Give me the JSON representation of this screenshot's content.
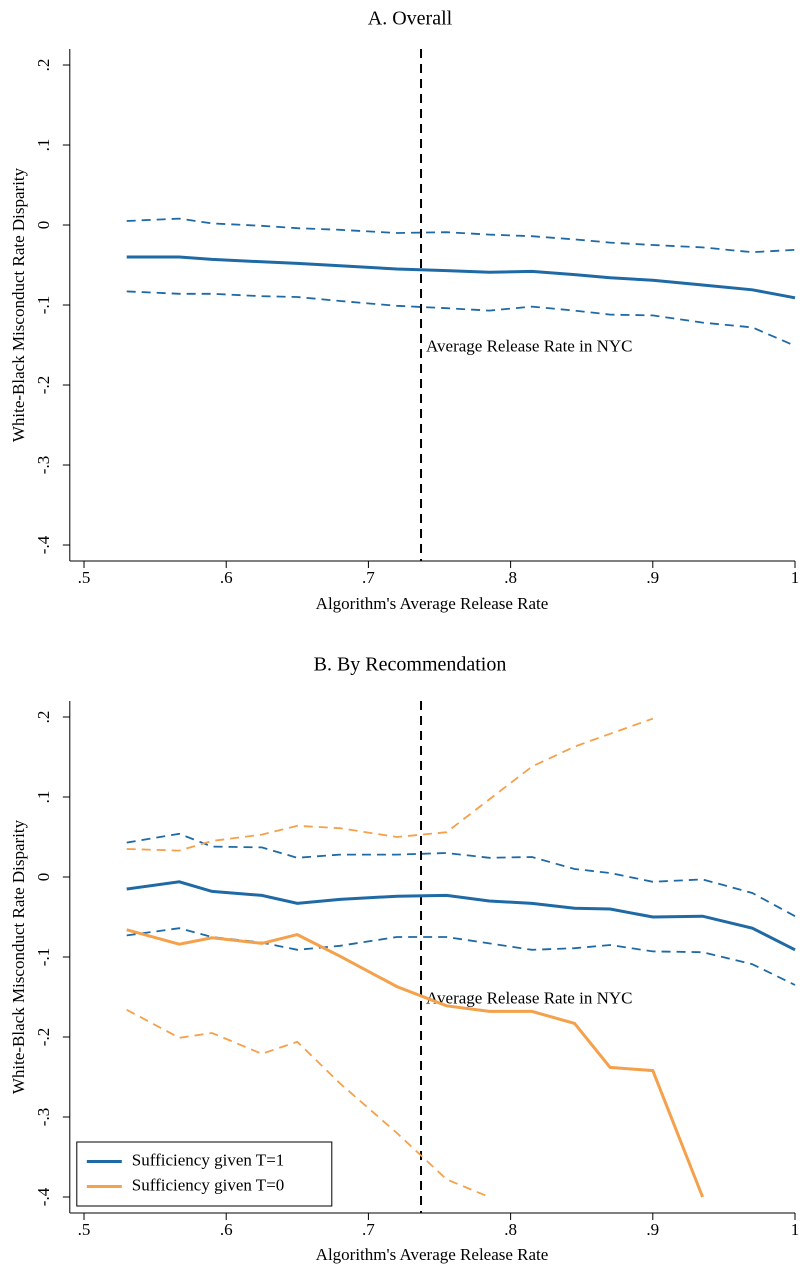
{
  "chart_data": [
    {
      "type": "line",
      "title": "A. Overall",
      "xlabel": "Algorithm's Average Release Rate",
      "ylabel": "White-Black Misconduct Rate Disparity",
      "x": [
        0.53,
        0.567,
        0.59,
        0.625,
        0.65,
        0.68,
        0.72,
        0.755,
        0.785,
        0.815,
        0.845,
        0.87,
        0.9,
        0.935,
        0.97,
        1.0
      ],
      "series": [
        {
          "color": "#1f6aa5",
          "values": [
            -0.04,
            -0.04,
            -0.043,
            -0.046,
            -0.048,
            -0.051,
            -0.055,
            -0.057,
            -0.059,
            -0.058,
            -0.062,
            -0.066,
            -0.069,
            -0.075,
            -0.081,
            -0.091
          ],
          "upper": [
            0.005,
            0.008,
            0.002,
            -0.001,
            -0.004,
            -0.006,
            -0.01,
            -0.009,
            -0.012,
            -0.014,
            -0.018,
            -0.022,
            -0.025,
            -0.028,
            -0.034,
            -0.031
          ],
          "lower": [
            -0.083,
            -0.086,
            -0.086,
            -0.089,
            -0.09,
            -0.095,
            -0.101,
            -0.104,
            -0.107,
            -0.102,
            -0.107,
            -0.112,
            -0.113,
            -0.122,
            -0.128,
            -0.151
          ]
        }
      ],
      "vline": {
        "value": 0.737,
        "label": "Average Release Rate in NYC"
      },
      "xlim": [
        0.49,
        1.0
      ],
      "ylim": [
        -0.42,
        0.22
      ],
      "xticks": [
        {
          "value": 0.5,
          "label": ".5"
        },
        {
          "value": 0.6,
          "label": ".6"
        },
        {
          "value": 0.7,
          "label": ".7"
        },
        {
          "value": 0.8,
          "label": ".8"
        },
        {
          "value": 0.9,
          "label": ".9"
        },
        1
      ],
      "yticks": [
        {
          "value": -0.4,
          "label": "-.4"
        },
        {
          "value": -0.3,
          "label": "-.3"
        },
        {
          "value": -0.2,
          "label": "-.2"
        },
        {
          "value": -0.1,
          "label": "-.1"
        },
        0,
        {
          "value": 0.1,
          "label": ".1"
        },
        {
          "value": 0.2,
          "label": ".2"
        }
      ]
    },
    {
      "type": "line",
      "title": "B. By Recommendation",
      "xlabel": "Algorithm's Average Release Rate",
      "ylabel": "White-Black Misconduct Rate Disparity",
      "x": [
        0.53,
        0.567,
        0.59,
        0.625,
        0.65,
        0.68,
        0.72,
        0.755,
        0.785,
        0.815,
        0.845,
        0.87,
        0.9,
        0.935,
        0.97,
        1.0
      ],
      "series": [
        {
          "name": "Sufficiency given T=1",
          "color": "#1f6aa5",
          "values": [
            -0.015,
            -0.006,
            -0.018,
            -0.023,
            -0.033,
            -0.028,
            -0.024,
            -0.023,
            -0.03,
            -0.033,
            -0.039,
            -0.04,
            -0.05,
            -0.049,
            -0.064,
            -0.091
          ],
          "upper": [
            0.043,
            0.054,
            0.038,
            0.037,
            0.024,
            0.028,
            0.028,
            0.03,
            0.024,
            0.025,
            0.01,
            0.005,
            -0.006,
            -0.003,
            -0.02,
            -0.049
          ],
          "lower": [
            -0.073,
            -0.064,
            -0.075,
            -0.082,
            -0.091,
            -0.086,
            -0.075,
            -0.075,
            -0.083,
            -0.091,
            -0.089,
            -0.085,
            -0.093,
            -0.094,
            -0.109,
            -0.135
          ]
        },
        {
          "name": "Sufficiency given T=0",
          "color": "#f5a04a",
          "values": [
            -0.066,
            -0.084,
            -0.076,
            -0.083,
            -0.072,
            -0.099,
            -0.137,
            -0.161,
            -0.168,
            -0.168,
            -0.183,
            -0.238,
            -0.242,
            -0.4,
            null,
            null
          ],
          "upper": [
            0.035,
            0.033,
            0.045,
            0.053,
            0.064,
            0.061,
            0.05,
            0.056,
            0.097,
            0.138,
            0.163,
            0.179,
            0.198,
            null,
            null,
            null
          ],
          "lower": [
            -0.166,
            -0.201,
            -0.195,
            -0.221,
            -0.206,
            -0.258,
            -0.32,
            -0.378,
            -0.4,
            null,
            null,
            null,
            null,
            null,
            null,
            null
          ]
        }
      ],
      "vline": {
        "value": 0.737,
        "label": "Average Release Rate in NYC"
      },
      "legend": "lower left",
      "xlim": [
        0.49,
        1.0
      ],
      "ylim": [
        -0.42,
        0.22
      ],
      "xticks": [
        {
          "value": 0.5,
          "label": ".5"
        },
        {
          "value": 0.6,
          "label": ".6"
        },
        {
          "value": 0.7,
          "label": ".7"
        },
        {
          "value": 0.8,
          "label": ".8"
        },
        {
          "value": 0.9,
          "label": ".9"
        },
        1
      ],
      "yticks": [
        {
          "value": -0.4,
          "label": "-.4"
        },
        {
          "value": -0.3,
          "label": "-.3"
        },
        {
          "value": -0.2,
          "label": "-.2"
        },
        {
          "value": -0.1,
          "label": "-.1"
        },
        0,
        {
          "value": 0.1,
          "label": ".1"
        },
        {
          "value": 0.2,
          "label": ".2"
        }
      ]
    }
  ]
}
